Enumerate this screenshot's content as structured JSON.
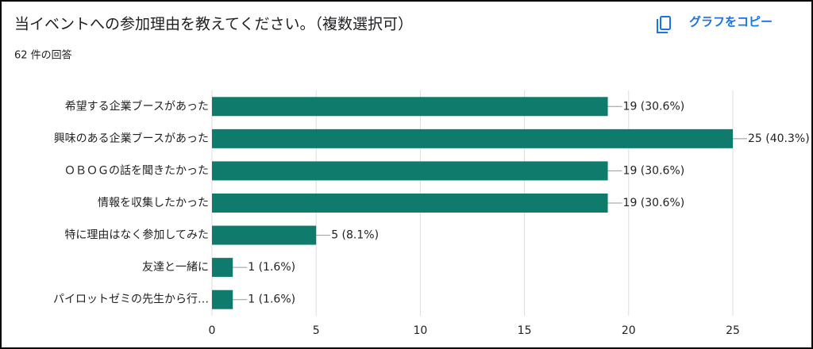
{
  "chart_data": {
    "type": "bar",
    "orientation": "horizontal",
    "title": "当イベントへの参加理由を教えてください。（複数選択可）",
    "subtitle": "62 件の回答",
    "categories": [
      "希望する企業ブースがあった",
      "興味のある企業ブースがあった",
      "ＯＢＯＧの話を聞きたかった",
      "情報を収集したかった",
      "特に理由はなく参加してみた",
      "友達と一緒に",
      "パイロットゼミの先生から行…"
    ],
    "values": [
      19,
      25,
      19,
      19,
      5,
      1,
      1
    ],
    "value_labels": [
      "19 (30.6%)",
      "25 (40.3%)",
      "19 (30.6%)",
      "19 (30.6%)",
      "5 (8.1%)",
      "1 (1.6%)",
      "1 (1.6%)"
    ],
    "color": "#0f7b6c",
    "xlim": [
      0,
      25
    ],
    "xticks": [
      0,
      5,
      10,
      15,
      20,
      25
    ],
    "grid": true
  },
  "copy_button": "グラフをコピー"
}
